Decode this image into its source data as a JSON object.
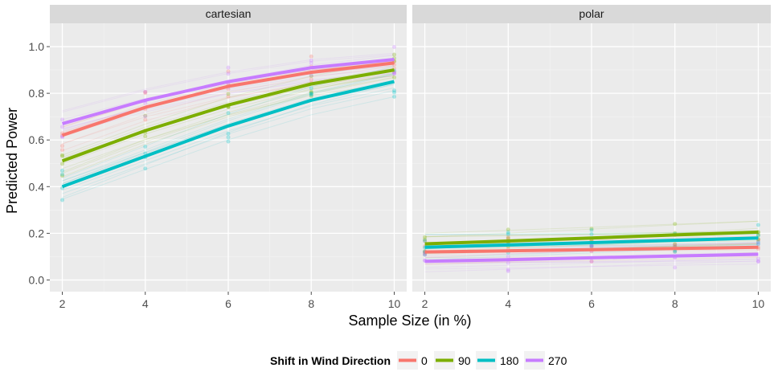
{
  "chart_data": {
    "type": "line",
    "xlabel": "Sample Size (in %)",
    "ylabel": "Predicted Power",
    "xlim": [
      1.7,
      10.3
    ],
    "ylim": [
      -0.05,
      1.1
    ],
    "x_ticks": [
      2,
      4,
      6,
      8,
      10
    ],
    "x_tick_labels": [
      "2",
      "4",
      "6",
      "8",
      "10"
    ],
    "y_ticks": [
      0.0,
      0.2,
      0.4,
      0.6,
      0.8,
      1.0
    ],
    "y_tick_labels": [
      "0.0",
      "0.2",
      "0.4",
      "0.6",
      "0.8",
      "1.0"
    ],
    "grid": true,
    "legend": {
      "title": "Shift in Wind Direction",
      "position": "bottom",
      "entries": [
        "0",
        "90",
        "180",
        "270"
      ]
    },
    "colors": {
      "0": "#F8766D",
      "90": "#7CAE00",
      "180": "#00BFC4",
      "270": "#C77CFF",
      "panel_bg": "#EBEBEB",
      "strip_bg": "#D9D9D9"
    },
    "panels": [
      {
        "name": "cartesian",
        "series": [
          {
            "name": "0",
            "x": [
              2,
              4,
              6,
              8,
              10
            ],
            "values": [
              0.62,
              0.74,
              0.83,
              0.89,
              0.93
            ]
          },
          {
            "name": "90",
            "x": [
              2,
              4,
              6,
              8,
              10
            ],
            "values": [
              0.51,
              0.64,
              0.75,
              0.84,
              0.9
            ]
          },
          {
            "name": "180",
            "x": [
              2,
              4,
              6,
              8,
              10
            ],
            "values": [
              0.4,
              0.53,
              0.66,
              0.77,
              0.85
            ]
          },
          {
            "name": "270",
            "x": [
              2,
              4,
              6,
              8,
              10
            ],
            "values": [
              0.67,
              0.77,
              0.85,
              0.91,
              0.945
            ]
          }
        ]
      },
      {
        "name": "polar",
        "series": [
          {
            "name": "0",
            "x": [
              2,
              4,
              6,
              8,
              10
            ],
            "values": [
              0.12,
              0.125,
              0.13,
              0.135,
              0.14
            ]
          },
          {
            "name": "90",
            "x": [
              2,
              4,
              6,
              8,
              10
            ],
            "values": [
              0.155,
              0.167,
              0.18,
              0.193,
              0.205
            ]
          },
          {
            "name": "180",
            "x": [
              2,
              4,
              6,
              8,
              10
            ],
            "values": [
              0.14,
              0.15,
              0.16,
              0.17,
              0.18
            ]
          },
          {
            "name": "270",
            "x": [
              2,
              4,
              6,
              8,
              10
            ],
            "values": [
              0.08,
              0.087,
              0.095,
              0.103,
              0.11
            ]
          }
        ]
      }
    ]
  }
}
